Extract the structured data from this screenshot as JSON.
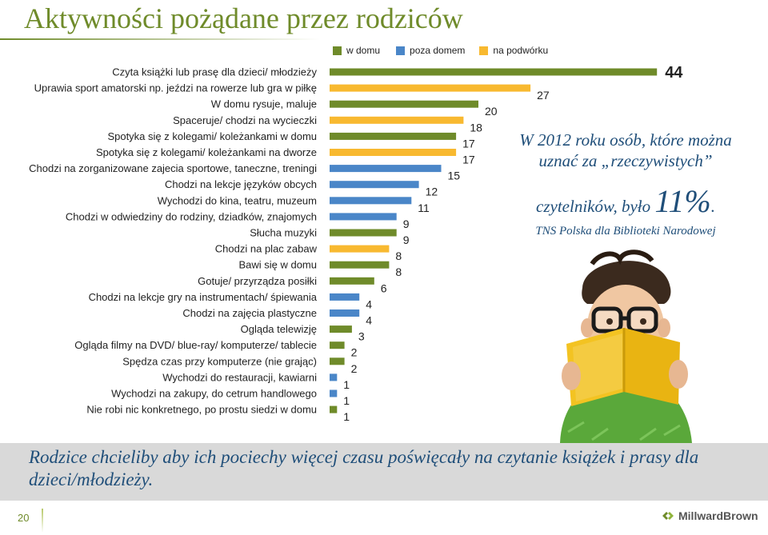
{
  "page": {
    "title": "Aktywności pożądane przez rodziców",
    "page_number": "20",
    "logo_text": "MillwardBrown"
  },
  "stat_box": {
    "line1": "W 2012 roku osób, które można",
    "line2": "uznać za „rzeczywistych”",
    "line3_pre": "czytelników, było ",
    "line3_value": "11%",
    "line3_post": ".",
    "source": "TNS Polska dla Biblioteki Narodowej"
  },
  "bottom_text": "Rodzice chcieliby aby ich pociechy więcej czasu poświęcały na czytanie książek i prasy dla dzieci/młodzieży.",
  "colors": {
    "title": "#6f8b2a",
    "w_domu": "#6f8b2a",
    "poza_domem": "#4a86c8",
    "na_podworku": "#f8b930",
    "text_blue": "#1f4e79"
  },
  "chart_data": {
    "type": "bar",
    "orientation": "horizontal",
    "legend_position": "top",
    "series_legend": [
      {
        "name": "w domu",
        "color": "#6f8b2a"
      },
      {
        "name": "poza domem",
        "color": "#4a86c8"
      },
      {
        "name": "na podwórku",
        "color": "#f8b930"
      }
    ],
    "categories": [
      "Czyta książki lub prasę dla dzieci/ młodzieży",
      "Uprawia sport amatorski np. jeździ na rowerze lub gra w piłkę",
      "W domu rysuje, maluje",
      "Spaceruje/ chodzi na wycieczki",
      "Spotyka się z kolegami/ koleżankami w domu",
      "Spotyka się z kolegami/ koleżankami na dworze",
      "Chodzi na zorganizowane zajecia sportowe, taneczne, treningi",
      "Chodzi na lekcje języków obcych",
      "Wychodzi do kina, teatru, muzeum",
      "Chodzi w odwiedziny do rodziny, dziadków, znajomych",
      "Słucha muzyki",
      "Chodzi na plac zabaw",
      "Bawi się w domu",
      "Gotuje/ przyrządza posiłki",
      "Chodzi na lekcje gry na instrumentach/ śpiewania",
      "Chodzi na zajęcia plastyczne",
      "Ogląda telewizję",
      "Ogląda filmy na DVD/ blue-ray/ komputerze/ tablecie",
      "Spędza czas przy komputerze (nie grając)",
      "Wychodzi do restauracji, kawiarni",
      "Wychodzi na zakupy, do cetrum handlowego",
      "Nie robi nic konkretnego, po prostu siedzi w domu"
    ],
    "values": [
      44,
      27,
      20,
      18,
      17,
      17,
      15,
      12,
      11,
      9,
      9,
      8,
      8,
      6,
      4,
      4,
      3,
      2,
      2,
      1,
      1,
      1
    ],
    "bar_series": [
      "w domu",
      "na podwórku",
      "w domu",
      "na podwórku",
      "w domu",
      "na podwórku",
      "poza domem",
      "poza domem",
      "poza domem",
      "poza domem",
      "w domu",
      "na podwórku",
      "w domu",
      "w domu",
      "poza domem",
      "poza domem",
      "w domu",
      "w domu",
      "w domu",
      "poza domem",
      "poza domem",
      "w domu"
    ],
    "xlim": [
      0,
      44
    ]
  }
}
